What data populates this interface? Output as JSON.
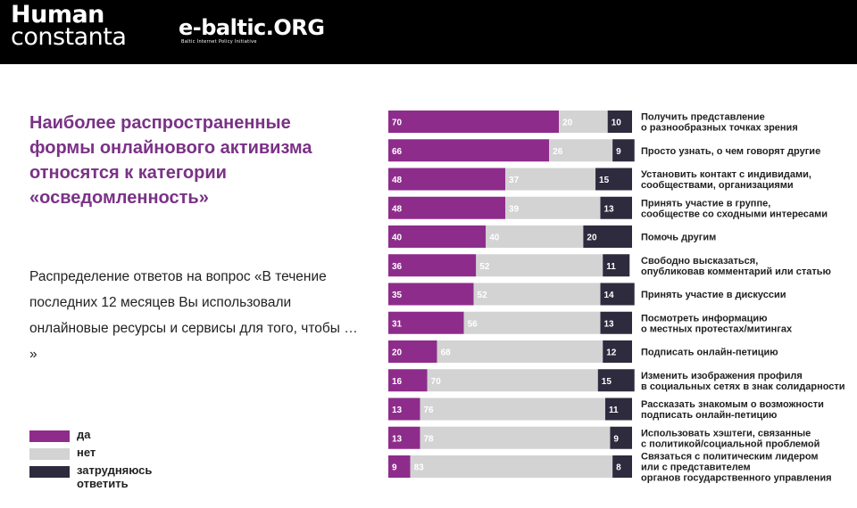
{
  "logos": {
    "human_line1": "Human",
    "human_line2": "constanta",
    "ebaltic": "e-baltic.ORG",
    "ebaltic_sub": "Baltic Internet Policy Initiative"
  },
  "title": "Наиболее распространенные формы онлайнового активизма относятся к категории «осведомленность»",
  "description": "Распределение ответов на вопрос «В течение последних 12 месяцев Вы использовали онлайновые ресурсы и сервисы для того, чтобы … »",
  "colors": {
    "yes": "#8e2c8c",
    "no": "#d3d3d3",
    "unsure": "#2e2b3f",
    "yes_text": "#ffffff",
    "no_text": "#ffffff",
    "unsure_text": "#ffffff"
  },
  "legend": [
    {
      "key": "yes",
      "label": "да"
    },
    {
      "key": "no",
      "label": "нет"
    },
    {
      "key": "unsure",
      "label": "затрудняюсь ответить"
    }
  ],
  "chart_data": {
    "type": "bar",
    "orientation": "horizontal-stacked-100",
    "xlim": [
      0,
      100
    ],
    "categories": [
      [
        "Получить представление",
        "о разнообразных точках зрения"
      ],
      [
        "Просто узнать, о чем говорят другие"
      ],
      [
        "Установить контакт с индивидами,",
        "сообществами, организациями"
      ],
      [
        "Принять участие в группе,",
        "сообществе со сходными интересами"
      ],
      [
        "Помочь другим"
      ],
      [
        "Свободно высказаться,",
        "опубликовав комментарий или статью"
      ],
      [
        "Принять участие в дискуссии"
      ],
      [
        "Посмотреть информацию",
        "о местных протестах/митингах"
      ],
      [
        "Подписать онлайн-петицию"
      ],
      [
        "Изменить изображения профиля",
        "в социальных сетях в знак солидарности"
      ],
      [
        "Рассказать знакомым о возможности",
        "подписать онлайн-петицию"
      ],
      [
        "Использовать хэштеги, связанные",
        "с политикой/социальной проблемой"
      ],
      [
        "Связаться с политическим лидером",
        "или с представителем",
        "органов государственного управления"
      ]
    ],
    "series": [
      {
        "name": "да",
        "key": "yes",
        "values": [
          70,
          66,
          48,
          48,
          40,
          36,
          35,
          31,
          20,
          16,
          13,
          13,
          9
        ]
      },
      {
        "name": "нет",
        "key": "no",
        "values": [
          20,
          26,
          37,
          39,
          40,
          52,
          52,
          56,
          68,
          70,
          76,
          78,
          83
        ]
      },
      {
        "name": "затрудняюсь ответить",
        "key": "unsure",
        "values": [
          10,
          9,
          15,
          13,
          20,
          11,
          14,
          13,
          12,
          15,
          11,
          9,
          8
        ]
      }
    ],
    "legend_position": "bottom-left",
    "grid": false
  }
}
